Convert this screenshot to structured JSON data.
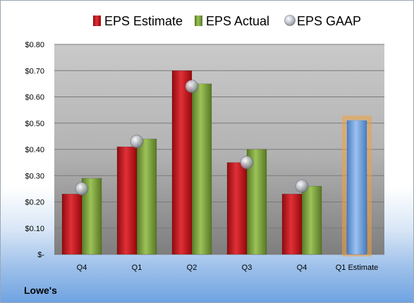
{
  "company": "Lowe's",
  "chart_data": {
    "type": "bar",
    "categories": [
      "Q4",
      "Q1",
      "Q2",
      "Q3",
      "Q4",
      "Q1 Estimate"
    ],
    "series": [
      {
        "name": "EPS Estimate",
        "kind": "bar",
        "color": "#c8141a",
        "values": [
          0.23,
          0.41,
          0.7,
          0.35,
          0.23,
          null
        ]
      },
      {
        "name": "EPS Actual",
        "kind": "bar",
        "color": "#7da13a",
        "values": [
          0.29,
          0.44,
          0.65,
          0.4,
          0.26,
          null
        ]
      },
      {
        "name": "EPS GAAP",
        "kind": "marker",
        "color": "#b8bcc4",
        "values": [
          0.25,
          0.43,
          0.64,
          0.35,
          0.26,
          null
        ]
      }
    ],
    "estimate_bar": {
      "category": "Q1 Estimate",
      "value": 0.51,
      "color": "#6f9fdc",
      "glow": "#f0a040"
    },
    "y_ticks": [
      "$-",
      "$0.10",
      "$0.20",
      "$0.30",
      "$0.40",
      "$0.50",
      "$0.60",
      "$0.70",
      "$0.80"
    ],
    "ylim": [
      0,
      0.8
    ],
    "legend_position": "top",
    "grid": true
  }
}
